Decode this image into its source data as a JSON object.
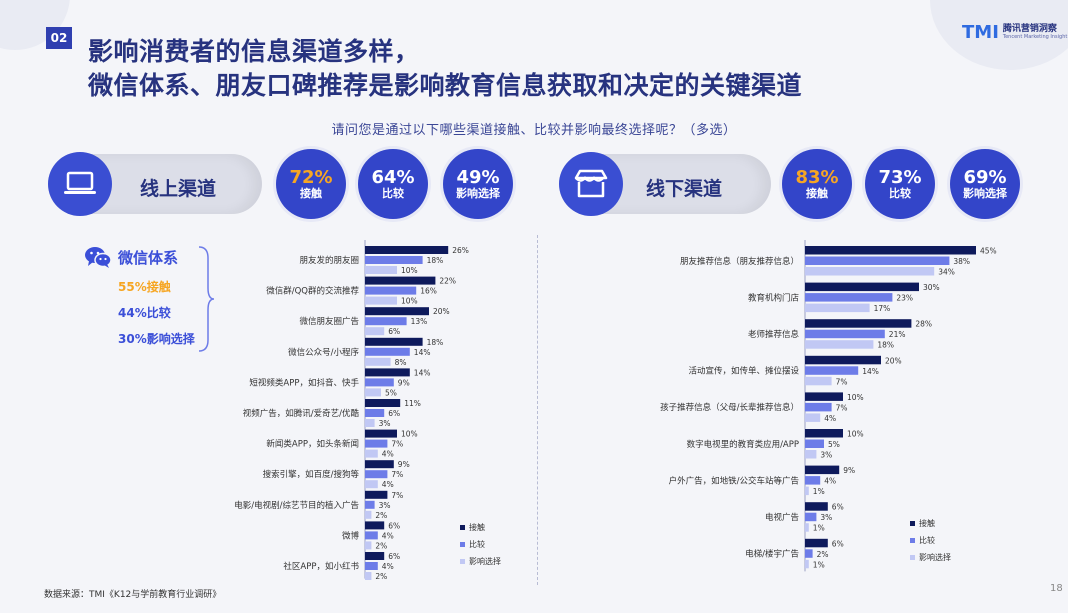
{
  "page_badge": "02",
  "title_line1": "影响消费者的信息渠道多样，",
  "title_line2": "微信体系、朋友口碑推荐是影响教育信息获取和决定的关键渠道",
  "brand": {
    "mark": "TMI",
    "name_cn": "腾讯营销洞察",
    "name_en": "Tencent Marketing Insight"
  },
  "question": "请问您是通过以下哪些渠道接触、比较并影响最终选择呢？（多选）",
  "online": {
    "label": "线上渠道",
    "icon": "laptop-icon",
    "stats": [
      {
        "value": "72%",
        "label": "接触",
        "highlight": "#f6a623"
      },
      {
        "value": "64%",
        "label": "比较"
      },
      {
        "value": "49%",
        "label": "影响选择"
      }
    ]
  },
  "offline": {
    "label": "线下渠道",
    "icon": "store-icon",
    "stats": [
      {
        "value": "83%",
        "label": "接触",
        "highlight": "#f6a623"
      },
      {
        "value": "73%",
        "label": "比较"
      },
      {
        "value": "69%",
        "label": "影响选择"
      }
    ]
  },
  "wechat": {
    "icon": "wechat-icon",
    "title": "微信体系",
    "contact": "55%接触",
    "compare": "44%比较",
    "influence": "30%影响选择",
    "contact_color": "#f6a623"
  },
  "colors": {
    "contact": "#0e1a5c",
    "compare": "#6d7ce8",
    "influence": "#c1c8f4"
  },
  "chart_data": [
    {
      "type": "bar",
      "orientation": "horizontal",
      "categories": [
        "朋友发的朋友圈",
        "微信群/QQ群的交流推荐",
        "微信朋友圈广告",
        "微信公众号/小程序",
        "短视频类APP，如抖音、快手",
        "视频广告，如腾讯/爱奇艺/优酷",
        "新闻类APP，如头条新闻",
        "搜索引擎，如百度/搜狗等",
        "电影/电视剧/综艺节目的植入广告",
        "微博",
        "社区APP，如小红书"
      ],
      "series": [
        {
          "name": "接触",
          "values": [
            26,
            22,
            20,
            18,
            14,
            11,
            10,
            9,
            7,
            6,
            6
          ]
        },
        {
          "name": "比较",
          "values": [
            18,
            16,
            13,
            14,
            9,
            6,
            7,
            7,
            3,
            4,
            4
          ]
        },
        {
          "name": "影响选择",
          "values": [
            10,
            10,
            6,
            8,
            5,
            3,
            4,
            4,
            2,
            2,
            2
          ]
        }
      ],
      "unit": "%",
      "legend_position": "bottom-right"
    },
    {
      "type": "bar",
      "orientation": "horizontal",
      "categories": [
        "朋友推荐信息（朋友推荐信息）",
        "教育机构门店",
        "老师推荐信息",
        "活动宣传，如传单、摊位摆设",
        "孩子推荐信息（父母/长辈推荐信息）",
        "数字电视里的教育类应用/APP",
        "户外广告，如地铁/公交车站等广告",
        "电视广告",
        "电梯/楼宇广告"
      ],
      "series": [
        {
          "name": "接触",
          "values": [
            45,
            30,
            28,
            20,
            10,
            10,
            9,
            6,
            6
          ]
        },
        {
          "name": "比较",
          "values": [
            38,
            23,
            21,
            14,
            7,
            5,
            4,
            3,
            2
          ]
        },
        {
          "name": "影响选择",
          "values": [
            34,
            17,
            18,
            7,
            4,
            3,
            1,
            1,
            1
          ]
        }
      ],
      "unit": "%",
      "legend_position": "bottom-right"
    }
  ],
  "source": "数据来源：TMI《K12与学前教育行业调研》",
  "page_number": "18"
}
